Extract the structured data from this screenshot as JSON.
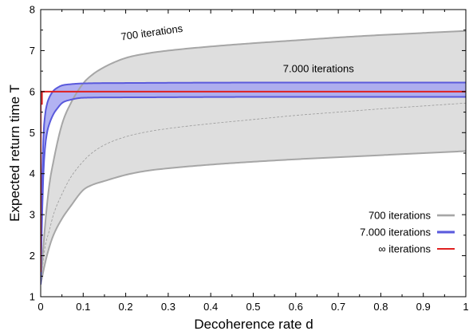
{
  "chart_data": {
    "type": "line",
    "xlabel": "Decoherence rate d",
    "ylabel": "Expected return time T",
    "xlim": [
      0,
      1
    ],
    "ylim": [
      1,
      8
    ],
    "x_ticks": [
      "0",
      "0.1",
      "0.2",
      "0.3",
      "0.4",
      "0.5",
      "0.6",
      "0.7",
      "0.8",
      "0.9",
      "1"
    ],
    "y_ticks": [
      "1",
      "2",
      "3",
      "4",
      "5",
      "6",
      "7",
      "8"
    ],
    "grid": false,
    "legend_position": "bottom-right",
    "annotations": [
      {
        "text": "700 iterations",
        "x": 0.19,
        "y": 7.25,
        "rotation_deg": -8
      },
      {
        "text": "7.000 iterations",
        "x": 0.57,
        "y": 6.47,
        "rotation_deg": 0
      }
    ],
    "series": [
      {
        "name": "700 iterations",
        "color": "#a6a6a6",
        "fill": "#e3e3e3",
        "x": [
          0,
          0.01,
          0.02,
          0.03,
          0.05,
          0.07,
          0.1,
          0.12,
          0.15,
          0.2,
          0.25,
          0.3,
          0.4,
          0.5,
          0.6,
          0.7,
          0.8,
          0.9,
          1.0
        ],
        "upper": [
          1.3,
          2.7,
          3.7,
          4.3,
          5.2,
          5.7,
          6.2,
          6.4,
          6.6,
          6.82,
          6.93,
          7.0,
          7.1,
          7.18,
          7.25,
          7.32,
          7.38,
          7.43,
          7.48
        ],
        "mean": [
          1.3,
          2.2,
          2.6,
          3.0,
          3.5,
          3.9,
          4.3,
          4.5,
          4.7,
          4.9,
          5.02,
          5.1,
          5.22,
          5.32,
          5.42,
          5.5,
          5.58,
          5.65,
          5.72
        ],
        "lower": [
          1.3,
          1.8,
          2.2,
          2.5,
          2.9,
          3.2,
          3.6,
          3.72,
          3.82,
          3.97,
          4.07,
          4.13,
          4.22,
          4.29,
          4.35,
          4.4,
          4.45,
          4.5,
          4.55
        ]
      },
      {
        "name": "7.000 iterations",
        "color": "#5a5adc",
        "fill": "#a5a5f0",
        "x": [
          0,
          0.003,
          0.006,
          0.01,
          0.015,
          0.02,
          0.03,
          0.04,
          0.05,
          0.07,
          0.1,
          0.2,
          0.5,
          1.0
        ],
        "upper": [
          1.3,
          3.5,
          4.8,
          5.4,
          5.7,
          5.85,
          6.02,
          6.1,
          6.15,
          6.18,
          6.2,
          6.21,
          6.22,
          6.22
        ],
        "lower": [
          1.3,
          2.8,
          3.9,
          4.6,
          5.0,
          5.2,
          5.45,
          5.6,
          5.72,
          5.8,
          5.85,
          5.86,
          5.87,
          5.87
        ]
      },
      {
        "name": "∞ iterations",
        "color": "#e02020",
        "x": [
          0,
          0,
          0.003,
          0.003,
          1.0
        ],
        "y": [
          1.6,
          5.7,
          5.7,
          6.0,
          6.0
        ]
      }
    ]
  }
}
